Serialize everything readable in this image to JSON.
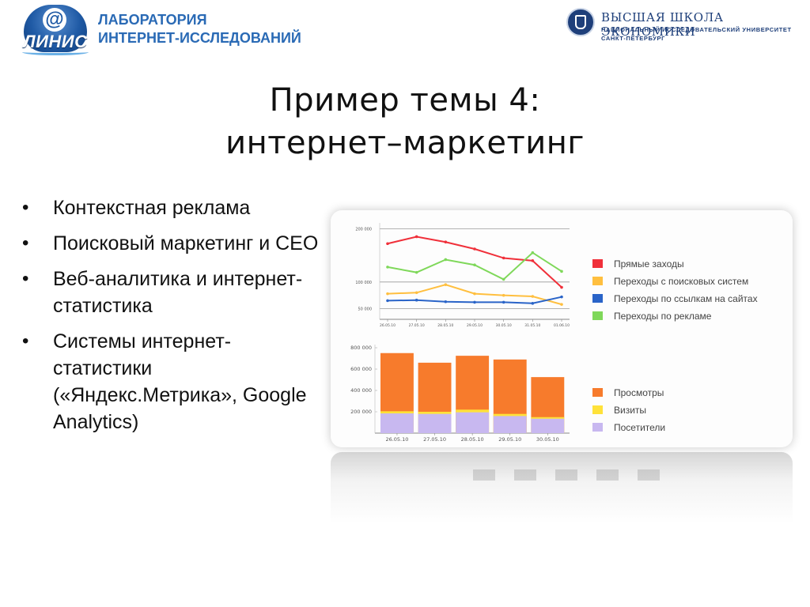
{
  "header": {
    "left_logo": {
      "badge_text": "ЛИНИС",
      "line1": "ЛАБОРАТОРИЯ",
      "line2": "ИНТЕРНЕТ-ИССЛЕДОВАНИЙ"
    },
    "right_logo": {
      "line1": "ВЫСШАЯ ШКОЛА ЭКОНОМИКИ",
      "line2": "НАЦИОНАЛЬНЫЙ ИССЛЕДОВАТЕЛЬСКИЙ УНИВЕРСИТЕТ",
      "line3": "САНКТ-ПЕТЕРБУРГ"
    }
  },
  "slide": {
    "title_line1": "Пример темы 4:",
    "title_line2": "интернет–маркетинг",
    "bullets": [
      {
        "text": "Контекстная реклама"
      },
      {
        "text": "Поисковый маркетинг и СЕО"
      },
      {
        "text": "Веб-аналитика и интернет-статистика"
      },
      {
        "text": "Системы интернет-статистики («Яндекс.Метрика», Google Analytics)"
      }
    ]
  },
  "colors": {
    "red": "#f0303a",
    "orange_line": "#ffbf3f",
    "blue": "#2a64c8",
    "green": "#7fd85a",
    "bar_views": "#f77b2c",
    "bar_visits": "#ffe23a",
    "bar_visitors": "#c8b8f0",
    "grid": "#999999"
  },
  "chart_data": [
    {
      "type": "line",
      "x": [
        "26.05.10",
        "27.05.10",
        "28.05.10",
        "29.05.10",
        "30.05.10",
        "31.05.10",
        "01.06.10"
      ],
      "ytick_labels": [
        "200 000",
        "100 000",
        "50 000"
      ],
      "series": [
        {
          "name": "Прямые заходы",
          "color": "#f0303a",
          "values": [
            172000,
            185000,
            175000,
            162000,
            145000,
            140000,
            90000
          ]
        },
        {
          "name": "Переходы с поисковых систем",
          "color": "#ffbf3f",
          "values": [
            78000,
            80000,
            95000,
            78000,
            75000,
            73000,
            58000
          ]
        },
        {
          "name": "Переходы по ссылкам на сайтах",
          "color": "#2a64c8",
          "values": [
            65000,
            66000,
            63000,
            62000,
            62000,
            60000,
            72000
          ]
        },
        {
          "name": "Переходы по рекламе",
          "color": "#7fd85a",
          "values": [
            128000,
            118000,
            142000,
            132000,
            105000,
            155000,
            120000
          ]
        }
      ],
      "ylim": [
        30000,
        205000
      ],
      "grid": true,
      "legend": "right"
    },
    {
      "type": "bar",
      "categories": [
        "26.05.10",
        "27.05.10",
        "28.05.10",
        "29.05.10",
        "30.05.10"
      ],
      "ytick_labels": [
        "800 000",
        "600 000",
        "400 000",
        "200 000"
      ],
      "series": [
        {
          "name": "Просмотры",
          "color": "#f77b2c",
          "values": [
            750000,
            660000,
            725000,
            690000,
            525000
          ]
        },
        {
          "name": "Визиты",
          "color": "#ffe23a",
          "values": [
            205000,
            200000,
            220000,
            180000,
            150000
          ]
        },
        {
          "name": "Посетители",
          "color": "#c8b8f0",
          "values": [
            185000,
            180000,
            195000,
            160000,
            135000
          ]
        }
      ],
      "ylim": [
        0,
        800000
      ],
      "grid": true,
      "legend": "right"
    }
  ]
}
